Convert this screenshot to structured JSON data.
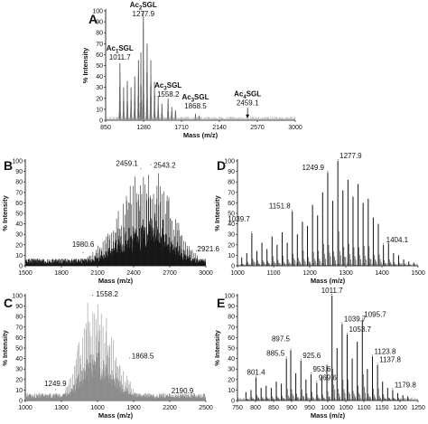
{
  "figure": {
    "panels": [
      "A",
      "B",
      "C",
      "D",
      "E"
    ]
  },
  "chart_data": [
    {
      "panel": "A",
      "type": "line",
      "xlabel": "Mass (m/z)",
      "ylabel": "% Intensity",
      "xlim": [
        850,
        3000
      ],
      "ylim": [
        0,
        100
      ],
      "xticks": [
        850,
        1280,
        1710,
        2140,
        2570,
        3000
      ],
      "yticks": [
        0,
        10,
        20,
        30,
        40,
        50,
        60,
        70,
        80,
        90,
        100
      ],
      "series_color": "#8a8a8a",
      "major_peaks": [
        {
          "x": 1011.7,
          "y": 52
        },
        {
          "x": 1053.7,
          "y": 30
        },
        {
          "x": 1095.7,
          "y": 36
        },
        {
          "x": 1137.8,
          "y": 30
        },
        {
          "x": 1179.8,
          "y": 40
        },
        {
          "x": 1221.8,
          "y": 55
        },
        {
          "x": 1249.9,
          "y": 62
        },
        {
          "x": 1277.9,
          "y": 100
        },
        {
          "x": 1320.0,
          "y": 70
        },
        {
          "x": 1362.0,
          "y": 55
        },
        {
          "x": 1404.1,
          "y": 35
        },
        {
          "x": 1446.0,
          "y": 22
        },
        {
          "x": 1488.0,
          "y": 15
        },
        {
          "x": 1558.2,
          "y": 20
        },
        {
          "x": 1600.2,
          "y": 12
        },
        {
          "x": 1642.0,
          "y": 9
        },
        {
          "x": 1868.5,
          "y": 6
        },
        {
          "x": 1910.0,
          "y": 4
        },
        {
          "x": 2459.1,
          "y": 1
        }
      ],
      "annotations": [
        {
          "text": "Ac",
          "sub": "1",
          "rest": "SGL",
          "value": "1011.7",
          "x": 1011.7
        },
        {
          "text": "Ac",
          "sub": "2",
          "rest": "SGL",
          "value": "1277.9",
          "x": 1277.9
        },
        {
          "text": "Ac",
          "sub": "3",
          "rest": "SGL",
          "value": "1558.2",
          "x": 1558.2
        },
        {
          "text": "Ac",
          "sub": "3",
          "rest": "SGL",
          "value": "1868.5",
          "x": 1868.5
        },
        {
          "text": "Ac",
          "sub": "4",
          "rest": "SGL",
          "value": "2459.1",
          "x": 2459.1
        }
      ]
    },
    {
      "panel": "B",
      "type": "line",
      "xlabel": "Mass (m/z)",
      "ylabel": "% Intensity",
      "xlim": [
        1500,
        3000
      ],
      "ylim": [
        0,
        100
      ],
      "xticks": [
        1500,
        1800,
        2100,
        2400,
        2700,
        3000
      ],
      "yticks": [
        0,
        10,
        20,
        30,
        40,
        50,
        60,
        70,
        80,
        90,
        100
      ],
      "series_color": "#111111",
      "envelope": {
        "center": 2530,
        "sigma_left": 240,
        "sigma_right": 190,
        "max": 96,
        "spacing": 14
      },
      "labels": [
        {
          "value": "1980.6",
          "x": 1980.6,
          "y": 12
        },
        {
          "value": "2459.1",
          "x": 2459.1,
          "y": 92
        },
        {
          "value": "2543.2",
          "x": 2543.2,
          "y": 96
        },
        {
          "value": "2921.6",
          "x": 2921.6,
          "y": 14
        }
      ]
    },
    {
      "panel": "C",
      "type": "line",
      "xlabel": "Mass (m/z)",
      "ylabel": "% Intensity",
      "xlim": [
        1000,
        2500
      ],
      "ylim": [
        0,
        100
      ],
      "xticks": [
        1000,
        1300,
        1600,
        1900,
        2200,
        2500
      ],
      "yticks": [
        0,
        10,
        20,
        30,
        40,
        50,
        60,
        70,
        80,
        90,
        100
      ],
      "series_color": "#8a8a8a",
      "envelope": {
        "center": 1560,
        "sigma_left": 110,
        "sigma_right": 170,
        "max": 100,
        "spacing": 14
      },
      "labels": [
        {
          "value": "1249.9",
          "x": 1249.9,
          "y": 10
        },
        {
          "value": "1558.2",
          "x": 1558.2,
          "y": 100
        },
        {
          "value": "1868.5",
          "x": 1868.5,
          "y": 40
        },
        {
          "value": "2190.9",
          "x": 2190.9,
          "y": 3
        }
      ]
    },
    {
      "panel": "D",
      "type": "bar",
      "xlabel": "Mass (m/z)",
      "ylabel": "% Intensity",
      "xlim": [
        1000,
        1500
      ],
      "ylim": [
        0,
        100
      ],
      "xticks": [
        1000,
        1100,
        1200,
        1300,
        1400,
        1500
      ],
      "yticks": [
        0,
        10,
        20,
        30,
        40,
        50,
        60,
        70,
        80,
        90,
        100
      ],
      "series_color": "#111111",
      "peaks": [
        {
          "x": 1011.7,
          "y": 8
        },
        {
          "x": 1025.7,
          "y": 12
        },
        {
          "x": 1039.7,
          "y": 31
        },
        {
          "x": 1053.7,
          "y": 14
        },
        {
          "x": 1067.7,
          "y": 22
        },
        {
          "x": 1081.7,
          "y": 16
        },
        {
          "x": 1095.7,
          "y": 28
        },
        {
          "x": 1109.7,
          "y": 20
        },
        {
          "x": 1123.8,
          "y": 32
        },
        {
          "x": 1137.8,
          "y": 22
        },
        {
          "x": 1151.8,
          "y": 52
        },
        {
          "x": 1165.8,
          "y": 30
        },
        {
          "x": 1179.8,
          "y": 42
        },
        {
          "x": 1193.8,
          "y": 38
        },
        {
          "x": 1207.8,
          "y": 58
        },
        {
          "x": 1221.8,
          "y": 48
        },
        {
          "x": 1235.8,
          "y": 70
        },
        {
          "x": 1249.9,
          "y": 89
        },
        {
          "x": 1263.9,
          "y": 62
        },
        {
          "x": 1277.9,
          "y": 100
        },
        {
          "x": 1291.9,
          "y": 72
        },
        {
          "x": 1305.9,
          "y": 82
        },
        {
          "x": 1319.9,
          "y": 66
        },
        {
          "x": 1333.9,
          "y": 78
        },
        {
          "x": 1347.9,
          "y": 60
        },
        {
          "x": 1362.0,
          "y": 64
        },
        {
          "x": 1376.0,
          "y": 46
        },
        {
          "x": 1390.0,
          "y": 40
        },
        {
          "x": 1404.1,
          "y": 20
        },
        {
          "x": 1418.1,
          "y": 22
        },
        {
          "x": 1432.1,
          "y": 12
        },
        {
          "x": 1446.1,
          "y": 10
        },
        {
          "x": 1460.1,
          "y": 6
        },
        {
          "x": 1474.1,
          "y": 4
        },
        {
          "x": 1488.1,
          "y": 3
        }
      ],
      "labels": [
        {
          "value": "1039.7",
          "x": 1039.7,
          "y": 31
        },
        {
          "value": "1151.8",
          "x": 1151.8,
          "y": 52
        },
        {
          "value": "1249.9",
          "x": 1249.9,
          "y": 89
        },
        {
          "value": "1277.9",
          "x": 1277.9,
          "y": 100
        },
        {
          "value": "1404.1",
          "x": 1404.1,
          "y": 20
        }
      ]
    },
    {
      "panel": "E",
      "type": "bar",
      "xlabel": "Mass (m/z)",
      "ylabel": "% Intensity",
      "xlim": [
        750,
        1250
      ],
      "ylim": [
        0,
        100
      ],
      "xticks": [
        750,
        800,
        850,
        900,
        950,
        1000,
        1050,
        1100,
        1150,
        1200,
        1250
      ],
      "yticks": [
        0,
        10,
        20,
        30,
        40,
        50,
        60,
        70,
        80,
        90,
        100
      ],
      "series_color": "#111111",
      "peaks": [
        {
          "x": 773.4,
          "y": 8
        },
        {
          "x": 787.4,
          "y": 10
        },
        {
          "x": 801.4,
          "y": 22
        },
        {
          "x": 815.4,
          "y": 12
        },
        {
          "x": 829.4,
          "y": 14
        },
        {
          "x": 843.4,
          "y": 12
        },
        {
          "x": 857.5,
          "y": 18
        },
        {
          "x": 871.5,
          "y": 16
        },
        {
          "x": 885.5,
          "y": 40
        },
        {
          "x": 897.5,
          "y": 48
        },
        {
          "x": 911.5,
          "y": 26
        },
        {
          "x": 925.6,
          "y": 38
        },
        {
          "x": 939.6,
          "y": 20
        },
        {
          "x": 953.6,
          "y": 25
        },
        {
          "x": 969.6,
          "y": 17
        },
        {
          "x": 983.6,
          "y": 24
        },
        {
          "x": 997.6,
          "y": 34
        },
        {
          "x": 1011.7,
          "y": 100
        },
        {
          "x": 1025.7,
          "y": 50
        },
        {
          "x": 1039.7,
          "y": 73
        },
        {
          "x": 1053.7,
          "y": 63
        },
        {
          "x": 1067.7,
          "y": 40
        },
        {
          "x": 1081.7,
          "y": 56
        },
        {
          "x": 1095.7,
          "y": 77
        },
        {
          "x": 1109.7,
          "y": 30
        },
        {
          "x": 1123.8,
          "y": 42
        },
        {
          "x": 1137.8,
          "y": 34
        },
        {
          "x": 1151.8,
          "y": 18
        },
        {
          "x": 1165.8,
          "y": 12
        },
        {
          "x": 1179.8,
          "y": 10
        },
        {
          "x": 1193.8,
          "y": 7
        },
        {
          "x": 1207.8,
          "y": 5
        },
        {
          "x": 1221.8,
          "y": 4
        }
      ],
      "labels": [
        {
          "value": "801.4",
          "x": 801.4,
          "y": 22
        },
        {
          "value": "885.5",
          "x": 885.5,
          "y": 40
        },
        {
          "value": "897.5",
          "x": 897.5,
          "y": 48
        },
        {
          "value": "925.6",
          "x": 925.6,
          "y": 38
        },
        {
          "value": "953.6",
          "x": 953.6,
          "y": 25
        },
        {
          "value": "969.6",
          "x": 969.6,
          "y": 17
        },
        {
          "value": "1011.7",
          "x": 1011.7,
          "y": 100
        },
        {
          "value": "1039.7",
          "x": 1039.7,
          "y": 73
        },
        {
          "value": "1053.7",
          "x": 1053.7,
          "y": 63
        },
        {
          "value": "1095.7",
          "x": 1095.7,
          "y": 77
        },
        {
          "value": "1123.8",
          "x": 1123.8,
          "y": 42
        },
        {
          "value": "1137.8",
          "x": 1137.8,
          "y": 34
        },
        {
          "value": "1179.8",
          "x": 1179.8,
          "y": 10
        }
      ]
    }
  ]
}
